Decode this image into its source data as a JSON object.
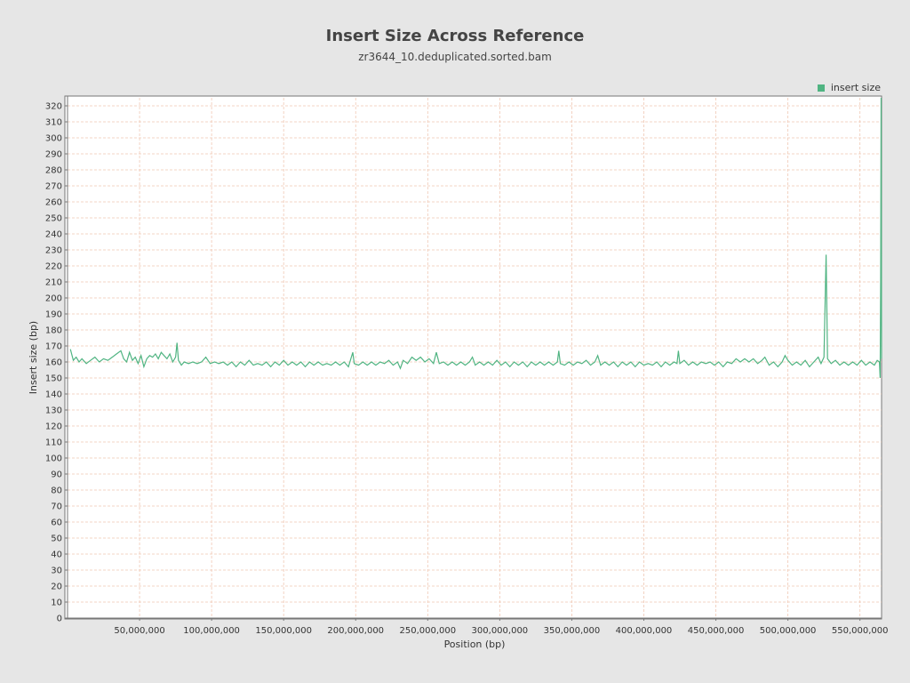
{
  "colors": {
    "background": "#e6e6e6",
    "plot_background": "#ffffff",
    "grid": "#f0c8b4",
    "series": "#50b482",
    "axis": "#777777"
  },
  "chart_data": {
    "type": "line",
    "title": "Insert Size Across Reference",
    "subtitle": "zr3644_10.deduplicated.sorted.bam",
    "xlabel": "Position (bp)",
    "ylabel": "Insert size (bp)",
    "xlim": [
      0,
      565000000
    ],
    "ylim": [
      0,
      325
    ],
    "x_ticks": [
      50000000,
      100000000,
      150000000,
      200000000,
      250000000,
      300000000,
      350000000,
      400000000,
      450000000,
      500000000,
      550000000
    ],
    "x_tick_labels": [
      "50,000,000",
      "100,000,000",
      "150,000,000",
      "200,000,000",
      "250,000,000",
      "300,000,000",
      "350,000,000",
      "400,000,000",
      "450,000,000",
      "500,000,000",
      "550,000,000"
    ],
    "y_ticks": [
      0,
      10,
      20,
      30,
      40,
      50,
      60,
      70,
      80,
      90,
      100,
      110,
      120,
      130,
      140,
      150,
      160,
      170,
      180,
      190,
      200,
      210,
      220,
      230,
      240,
      250,
      260,
      270,
      280,
      290,
      300,
      310,
      320
    ],
    "grid": true,
    "legend_position": "top-right",
    "series": [
      {
        "name": "insert size",
        "color": "#50b482",
        "points": [
          [
            2000000,
            168
          ],
          [
            4000000,
            161
          ],
          [
            6000000,
            163
          ],
          [
            8000000,
            160
          ],
          [
            10000000,
            162
          ],
          [
            13000000,
            159
          ],
          [
            16000000,
            161
          ],
          [
            19000000,
            163
          ],
          [
            22000000,
            160
          ],
          [
            25000000,
            162
          ],
          [
            28000000,
            161
          ],
          [
            31000000,
            163
          ],
          [
            34000000,
            165
          ],
          [
            37000000,
            167
          ],
          [
            39000000,
            162
          ],
          [
            41000000,
            160
          ],
          [
            43000000,
            166
          ],
          [
            45000000,
            161
          ],
          [
            47000000,
            163
          ],
          [
            49000000,
            159
          ],
          [
            51000000,
            164
          ],
          [
            53000000,
            157
          ],
          [
            55000000,
            162
          ],
          [
            57000000,
            164
          ],
          [
            59000000,
            163
          ],
          [
            61000000,
            165
          ],
          [
            63000000,
            162
          ],
          [
            65000000,
            166
          ],
          [
            67000000,
            164
          ],
          [
            69000000,
            162
          ],
          [
            71000000,
            165
          ],
          [
            73000000,
            160
          ],
          [
            75000000,
            163
          ],
          [
            76000000,
            172
          ],
          [
            77000000,
            161
          ],
          [
            79000000,
            158
          ],
          [
            81000000,
            160
          ],
          [
            84000000,
            159
          ],
          [
            87000000,
            160
          ],
          [
            90000000,
            159
          ],
          [
            93000000,
            160
          ],
          [
            96000000,
            163
          ],
          [
            99000000,
            159
          ],
          [
            102000000,
            160
          ],
          [
            105000000,
            159
          ],
          [
            108000000,
            160
          ],
          [
            111000000,
            158
          ],
          [
            114000000,
            160
          ],
          [
            117000000,
            157
          ],
          [
            120000000,
            160
          ],
          [
            123000000,
            158
          ],
          [
            126000000,
            161
          ],
          [
            129000000,
            158
          ],
          [
            132000000,
            159
          ],
          [
            135000000,
            158
          ],
          [
            138000000,
            160
          ],
          [
            141000000,
            157
          ],
          [
            144000000,
            160
          ],
          [
            147000000,
            158
          ],
          [
            150000000,
            161
          ],
          [
            153000000,
            158
          ],
          [
            156000000,
            160
          ],
          [
            159000000,
            158
          ],
          [
            162000000,
            160
          ],
          [
            165000000,
            157
          ],
          [
            168000000,
            160
          ],
          [
            171000000,
            158
          ],
          [
            174000000,
            160
          ],
          [
            177000000,
            158
          ],
          [
            180000000,
            159
          ],
          [
            183000000,
            158
          ],
          [
            186000000,
            160
          ],
          [
            189000000,
            158
          ],
          [
            192000000,
            160
          ],
          [
            195000000,
            157
          ],
          [
            198000000,
            166
          ],
          [
            199000000,
            159
          ],
          [
            202000000,
            158
          ],
          [
            205000000,
            160
          ],
          [
            208000000,
            158
          ],
          [
            211000000,
            160
          ],
          [
            214000000,
            158
          ],
          [
            217000000,
            160
          ],
          [
            220000000,
            159
          ],
          [
            223000000,
            161
          ],
          [
            226000000,
            158
          ],
          [
            229000000,
            160
          ],
          [
            231000000,
            156
          ],
          [
            233000000,
            161
          ],
          [
            236000000,
            159
          ],
          [
            239000000,
            163
          ],
          [
            242000000,
            161
          ],
          [
            245000000,
            163
          ],
          [
            248000000,
            160
          ],
          [
            251000000,
            162
          ],
          [
            254000000,
            159
          ],
          [
            256000000,
            166
          ],
          [
            258000000,
            159
          ],
          [
            261000000,
            160
          ],
          [
            264000000,
            158
          ],
          [
            267000000,
            160
          ],
          [
            270000000,
            158
          ],
          [
            273000000,
            160
          ],
          [
            276000000,
            158
          ],
          [
            279000000,
            160
          ],
          [
            281000000,
            163
          ],
          [
            283000000,
            158
          ],
          [
            286000000,
            160
          ],
          [
            289000000,
            158
          ],
          [
            292000000,
            160
          ],
          [
            295000000,
            158
          ],
          [
            298000000,
            161
          ],
          [
            301000000,
            158
          ],
          [
            304000000,
            160
          ],
          [
            307000000,
            157
          ],
          [
            310000000,
            160
          ],
          [
            313000000,
            158
          ],
          [
            316000000,
            160
          ],
          [
            319000000,
            157
          ],
          [
            322000000,
            160
          ],
          [
            325000000,
            158
          ],
          [
            328000000,
            160
          ],
          [
            331000000,
            158
          ],
          [
            334000000,
            160
          ],
          [
            337000000,
            158
          ],
          [
            340000000,
            160
          ],
          [
            341000000,
            167
          ],
          [
            342000000,
            159
          ],
          [
            345000000,
            158
          ],
          [
            348000000,
            160
          ],
          [
            351000000,
            158
          ],
          [
            354000000,
            160
          ],
          [
            357000000,
            159
          ],
          [
            360000000,
            161
          ],
          [
            363000000,
            158
          ],
          [
            366000000,
            160
          ],
          [
            368000000,
            164
          ],
          [
            370000000,
            158
          ],
          [
            373000000,
            160
          ],
          [
            376000000,
            158
          ],
          [
            379000000,
            160
          ],
          [
            382000000,
            157
          ],
          [
            385000000,
            160
          ],
          [
            388000000,
            158
          ],
          [
            391000000,
            160
          ],
          [
            394000000,
            157
          ],
          [
            397000000,
            160
          ],
          [
            400000000,
            158
          ],
          [
            403000000,
            159
          ],
          [
            406000000,
            158
          ],
          [
            409000000,
            160
          ],
          [
            412000000,
            157
          ],
          [
            415000000,
            160
          ],
          [
            418000000,
            158
          ],
          [
            421000000,
            160
          ],
          [
            423000000,
            159
          ],
          [
            424000000,
            167
          ],
          [
            425000000,
            159
          ],
          [
            428000000,
            161
          ],
          [
            431000000,
            158
          ],
          [
            434000000,
            160
          ],
          [
            437000000,
            158
          ],
          [
            440000000,
            160
          ],
          [
            443000000,
            159
          ],
          [
            446000000,
            160
          ],
          [
            449000000,
            158
          ],
          [
            452000000,
            160
          ],
          [
            455000000,
            157
          ],
          [
            458000000,
            160
          ],
          [
            461000000,
            159
          ],
          [
            464000000,
            162
          ],
          [
            467000000,
            160
          ],
          [
            470000000,
            162
          ],
          [
            473000000,
            160
          ],
          [
            476000000,
            162
          ],
          [
            479000000,
            159
          ],
          [
            482000000,
            161
          ],
          [
            484000000,
            163
          ],
          [
            487000000,
            158
          ],
          [
            490000000,
            160
          ],
          [
            493000000,
            157
          ],
          [
            496000000,
            160
          ],
          [
            498000000,
            164
          ],
          [
            500000000,
            161
          ],
          [
            503000000,
            158
          ],
          [
            506000000,
            160
          ],
          [
            509000000,
            158
          ],
          [
            512000000,
            161
          ],
          [
            515000000,
            157
          ],
          [
            518000000,
            160
          ],
          [
            521000000,
            163
          ],
          [
            523000000,
            159
          ],
          [
            525000000,
            163
          ],
          [
            526500000,
            227
          ],
          [
            527500000,
            162
          ],
          [
            530000000,
            159
          ],
          [
            533000000,
            161
          ],
          [
            536000000,
            158
          ],
          [
            539000000,
            160
          ],
          [
            542000000,
            158
          ],
          [
            545000000,
            160
          ],
          [
            548000000,
            158
          ],
          [
            551000000,
            161
          ],
          [
            554000000,
            158
          ],
          [
            557000000,
            160
          ],
          [
            560000000,
            158
          ],
          [
            562000000,
            161
          ],
          [
            563500000,
            160
          ],
          [
            564000000,
            150
          ],
          [
            564400000,
            210
          ],
          [
            564700000,
            325
          ],
          [
            565000000,
            162
          ]
        ]
      }
    ]
  }
}
